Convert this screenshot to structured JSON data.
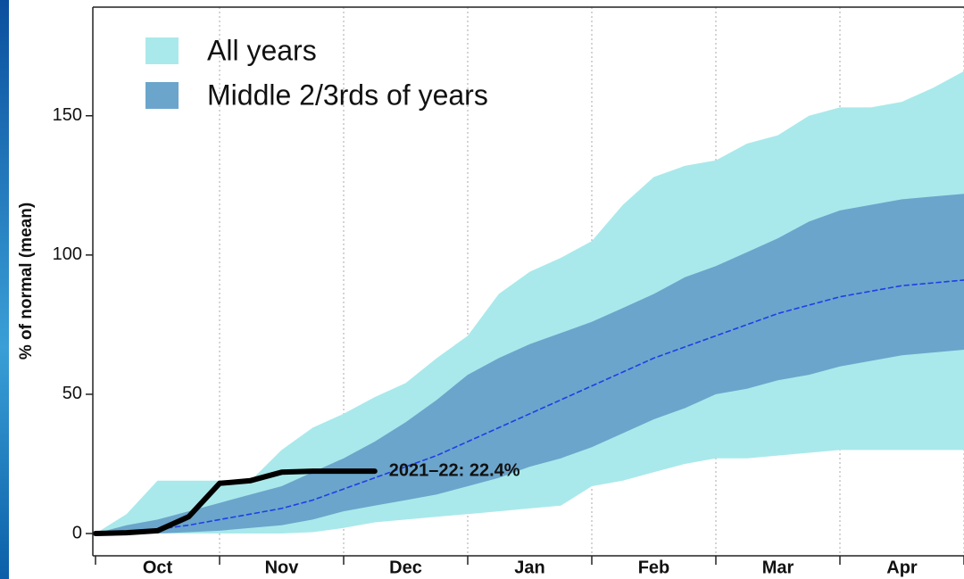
{
  "chart_data": {
    "type": "band",
    "y_label": "% of normal (mean)",
    "categories": [
      null,
      null,
      "Oct",
      null,
      null,
      null,
      "Nov",
      null,
      null,
      null,
      "Dec",
      null,
      null,
      null,
      "Jan",
      null,
      null,
      null,
      "Feb",
      null,
      null,
      null,
      "Mar",
      null,
      null,
      null,
      "Apr",
      null,
      null
    ],
    "ylim": [
      -8,
      189
    ],
    "yticks": [
      0,
      50,
      100,
      150
    ],
    "grid": "x",
    "legend": "top-left",
    "series": [
      {
        "name": "All years",
        "color": "#a9e9eb",
        "values": [
          0,
          7,
          19,
          19,
          19,
          19,
          30,
          38,
          43,
          49,
          54,
          63,
          71,
          86,
          94,
          99,
          105,
          118,
          128,
          132,
          134,
          140,
          143,
          150,
          153,
          153,
          155,
          160,
          166
        ],
        "lower": [
          0,
          0,
          0,
          0,
          0,
          0,
          0,
          0.5,
          2,
          4,
          5,
          6,
          7,
          8,
          9,
          10,
          17,
          19,
          22,
          25,
          27,
          27,
          28,
          29,
          30,
          30,
          30,
          30,
          30
        ]
      },
      {
        "name": "Middle 2/3rds of years",
        "color": "#6ba5cb",
        "values": [
          0,
          3,
          5,
          8,
          11,
          14,
          17,
          22,
          27,
          33,
          40,
          48,
          57,
          63,
          68,
          72,
          76,
          81,
          86,
          92,
          96,
          101,
          106,
          112,
          116,
          118,
          120,
          121,
          122
        ],
        "lower": [
          0,
          0,
          0,
          0.5,
          1,
          2,
          3,
          5,
          8,
          10,
          12,
          14,
          17,
          20,
          24,
          27,
          31,
          36,
          41,
          45,
          50,
          52,
          55,
          57,
          60,
          62,
          64,
          65,
          66
        ]
      },
      {
        "color": "#1f3fe6",
        "dash": true,
        "values": [
          0,
          0.5,
          1.5,
          3,
          5,
          7,
          9,
          12,
          16,
          20,
          24,
          28,
          33,
          38,
          43,
          48,
          53,
          58,
          63,
          67,
          71,
          75,
          79,
          82,
          85,
          87,
          89,
          90,
          91
        ]
      },
      {
        "color": "#000000",
        "label": "2021–22: 22.4%",
        "values": [
          0,
          0.3,
          1,
          6,
          18,
          19,
          22,
          22.4,
          22.4,
          22.4,
          null,
          null,
          null,
          null,
          null,
          null,
          null,
          null,
          null,
          null,
          null,
          null,
          null,
          null,
          null,
          null,
          null,
          null,
          null
        ]
      }
    ]
  }
}
